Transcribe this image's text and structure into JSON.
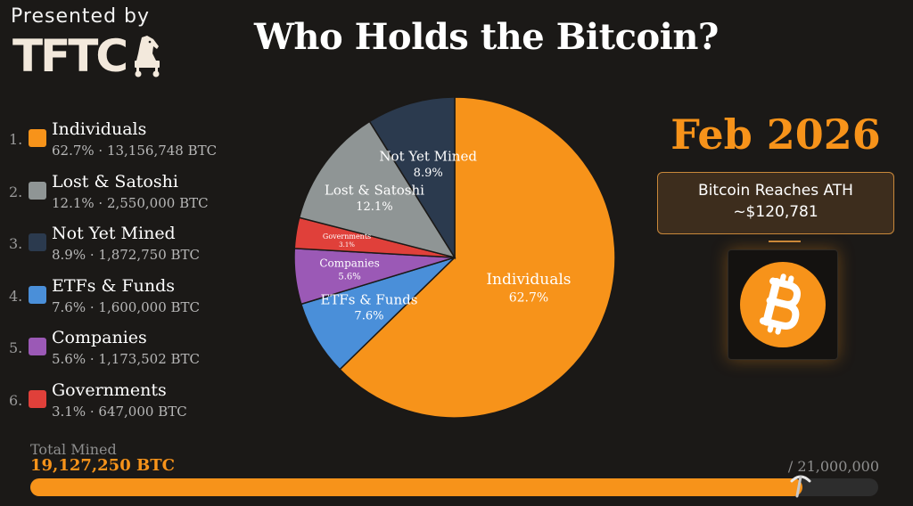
{
  "header": {
    "presented_by": "Presented by",
    "logo_text": "TFTC",
    "title": "Who Holds the Bitcoin?"
  },
  "chart_data": {
    "type": "pie",
    "title": "Who Holds the Bitcoin?",
    "slices": [
      {
        "rank": "1.",
        "name": "Individuals",
        "percent": 62.7,
        "pct_label": "62.7%",
        "btc": "13,156,748 BTC",
        "stats": "62.7% · 13,156,748 BTC",
        "color": "#f7931a",
        "label_color": "#ffffff"
      },
      {
        "rank": "4.",
        "name": "ETFs & Funds",
        "percent": 7.6,
        "pct_label": "7.6%",
        "btc": "1,600,000 BTC",
        "stats": "7.6% · 1,600,000 BTC",
        "color": "#4a8fd9",
        "label_color": "#ffffff"
      },
      {
        "rank": "5.",
        "name": "Companies",
        "percent": 5.6,
        "pct_label": "5.6%",
        "btc": "1,173,502 BTC",
        "stats": "5.6% · 1,173,502 BTC",
        "color": "#9b59b6",
        "label_color": "#ffffff"
      },
      {
        "rank": "6.",
        "name": "Governments",
        "percent": 3.1,
        "pct_label": "3.1%",
        "btc": "647,000 BTC",
        "stats": "3.1% · 647,000 BTC",
        "color": "#e0403a",
        "label_color": "#ffffff"
      },
      {
        "rank": "2.",
        "name": "Lost & Satoshi",
        "percent": 12.1,
        "pct_label": "12.1%",
        "btc": "2,550,000 BTC",
        "stats": "12.1% · 2,550,000 BTC",
        "color": "#8f9595",
        "label_color": "#ffffff"
      },
      {
        "rank": "3.",
        "name": "Not Yet Mined",
        "percent": 8.9,
        "pct_label": "8.9%",
        "btc": "1,872,750 BTC",
        "stats": "8.9% · 1,872,750 BTC",
        "color": "#2b3a4e",
        "label_color": "#ffffff"
      }
    ],
    "legend_order": [
      0,
      4,
      5,
      1,
      2,
      3
    ],
    "legend_position": "left"
  },
  "event": {
    "date": "Feb 2026",
    "line1": "Bitcoin Reaches ATH",
    "line2": "~$120,781",
    "coin_color": "#f7931a"
  },
  "progress": {
    "label": "Total Mined",
    "value_text": "19,127,250 BTC",
    "max_text": "/ 21,000,000",
    "mined": 19127250,
    "supply": 21000000,
    "fill_color": "#f7931a"
  }
}
